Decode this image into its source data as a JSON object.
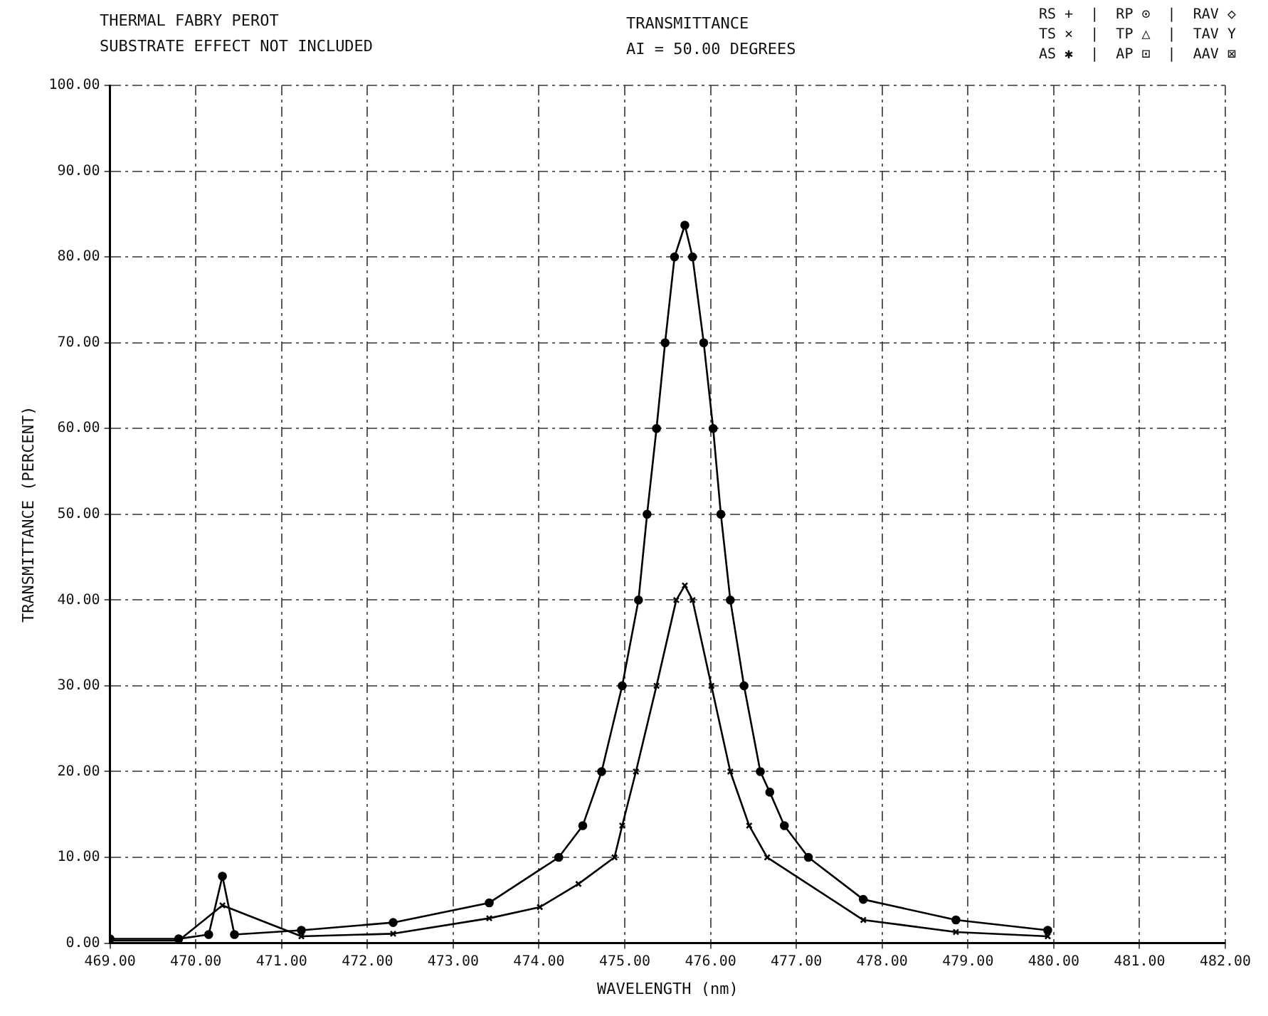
{
  "chart_data": {
    "type": "line",
    "title": "THERMAL FABRY PEROT",
    "subtitle": "SUBSTRATE EFFECT NOT INCLUDED",
    "xlabel": "WAVELENGTH (nm)",
    "ylabel": "TRANSMITTANCE (PERCENT)",
    "annotations": [
      "TRANSMITTANCE",
      "AI = 50.00 DEGREES",
      "RS +  |  RP ⊙  |  RAV ◇",
      "TS ×  |  TP △  |  TAV Y",
      "AS ✱  |  AP ⊡  |  AAV ⊠"
    ],
    "xlim": [
      469,
      482
    ],
    "xticks": [
      {
        "value": 469,
        "label": "469.00"
      },
      {
        "value": 470,
        "label": "470.00"
      },
      {
        "value": 471,
        "label": "471.00"
      },
      {
        "value": 472,
        "label": "472.00"
      },
      {
        "value": 473,
        "label": "473.00"
      },
      {
        "value": 474,
        "label": "474.00"
      },
      {
        "value": 475,
        "label": "475.00"
      },
      {
        "value": 476,
        "label": "476.00"
      },
      {
        "value": 477,
        "label": "477.00"
      },
      {
        "value": 478,
        "label": "478.00"
      },
      {
        "value": 479,
        "label": "479.00"
      },
      {
        "value": 480,
        "label": "480.00"
      },
      {
        "value": 481,
        "label": "481.00"
      },
      {
        "value": 482,
        "label": "482.00"
      }
    ],
    "ylim": [
      0,
      100
    ],
    "yticks": [
      {
        "value": 0,
        "label": "0.00"
      },
      {
        "value": 10,
        "label": "10.00"
      },
      {
        "value": 20,
        "label": "20.00"
      },
      {
        "value": 30,
        "label": "30.00"
      },
      {
        "value": 40,
        "label": "40.00"
      },
      {
        "value": 50,
        "label": "50.00"
      },
      {
        "value": 60,
        "label": "60.00"
      },
      {
        "value": 70,
        "label": "70.00"
      },
      {
        "value": 80,
        "label": "80.00"
      },
      {
        "value": 90,
        "label": "90.00"
      },
      {
        "value": 100,
        "label": "100.00"
      }
    ],
    "grid": true,
    "legend": false,
    "series": [
      {
        "color": "#000000",
        "marker": "circle",
        "x": [
          469.0,
          469.8,
          470.15,
          470.31,
          470.45,
          471.23,
          472.3,
          473.42,
          474.23,
          474.51,
          474.73,
          474.97,
          475.16,
          475.26,
          475.37,
          475.47,
          475.58,
          475.7,
          475.79,
          475.92,
          476.03,
          476.12,
          476.23,
          476.39,
          476.58,
          476.69,
          476.86,
          477.14,
          477.78,
          478.86,
          479.93
        ],
        "values": [
          0.5,
          0.5,
          1.0,
          7.8,
          1.0,
          1.5,
          2.4,
          4.7,
          10,
          13.7,
          20,
          30,
          40,
          50,
          60,
          70,
          80,
          83.7,
          80,
          70,
          60,
          50,
          40,
          30,
          20,
          17.6,
          13.7,
          10,
          5.1,
          2.7,
          1.5
        ]
      },
      {
        "color": "#000000",
        "marker": "cross",
        "x": [
          469.0,
          469.8,
          470.31,
          471.23,
          472.3,
          473.42,
          474.01,
          474.46,
          474.88,
          474.97,
          475.13,
          475.37,
          475.6,
          475.7,
          475.79,
          476.01,
          476.23,
          476.45,
          476.66,
          477.78,
          478.86,
          479.93
        ],
        "values": [
          0.3,
          0.3,
          4.4,
          0.8,
          1.1,
          2.9,
          4.2,
          6.9,
          10,
          13.7,
          20,
          30,
          40,
          41.7,
          40,
          30,
          20,
          13.7,
          10,
          2.7,
          1.3,
          0.8
        ]
      }
    ]
  }
}
